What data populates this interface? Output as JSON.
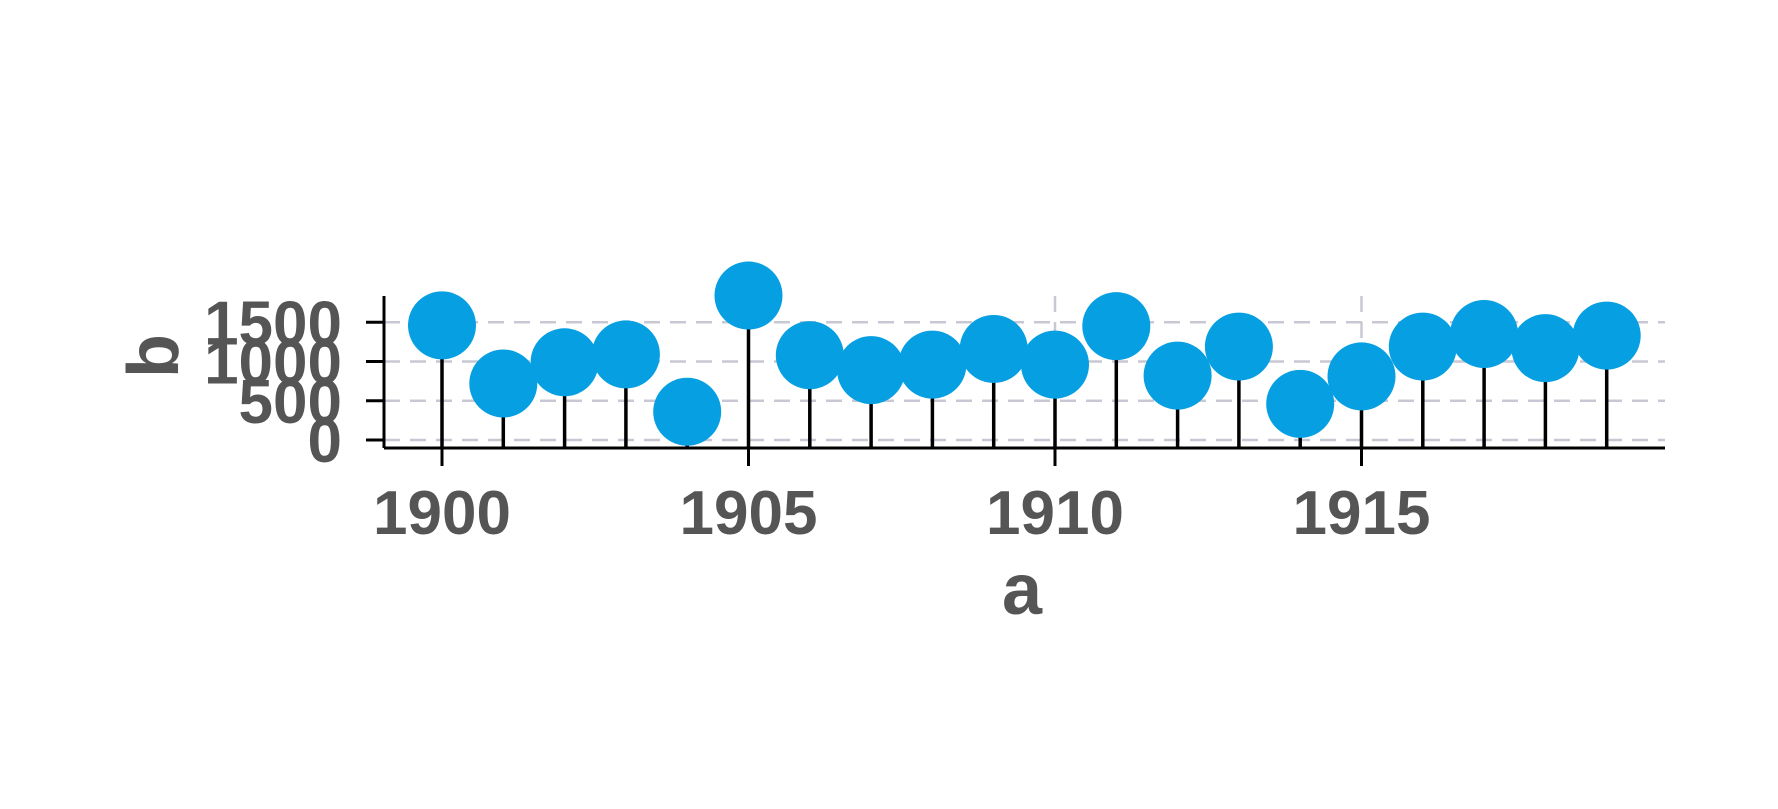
{
  "chart_data": {
    "type": "lollipop",
    "title": "",
    "xlabel": "a",
    "ylabel": "b",
    "x": [
      1900,
      1901,
      1902,
      1903,
      1904,
      1905,
      1906,
      1907,
      1908,
      1909,
      1910,
      1911,
      1912,
      1913,
      1914,
      1915,
      1916,
      1917,
      1918,
      1919
    ],
    "values": [
      1460,
      720,
      990,
      1090,
      360,
      1840,
      1080,
      890,
      960,
      1160,
      960,
      1450,
      820,
      1190,
      460,
      810,
      1190,
      1350,
      1170,
      1330
    ],
    "xticks": [
      1900,
      1905,
      1910,
      1915
    ],
    "xtick_labels": [
      "1900",
      "1905",
      "1910",
      "1915"
    ],
    "yticks": [
      0,
      500,
      1000,
      1500
    ],
    "ytick_labels": [
      "0",
      "500",
      "1000",
      "1500"
    ],
    "xlim": [
      1899.1,
      1920.0
    ],
    "ylim": [
      -100,
      1850
    ],
    "grid": true,
    "colors": {
      "marker": "#069fe2",
      "stem": "#000000",
      "grid": "#c8c8d4",
      "axis": "#000000",
      "text": "#555555"
    }
  }
}
